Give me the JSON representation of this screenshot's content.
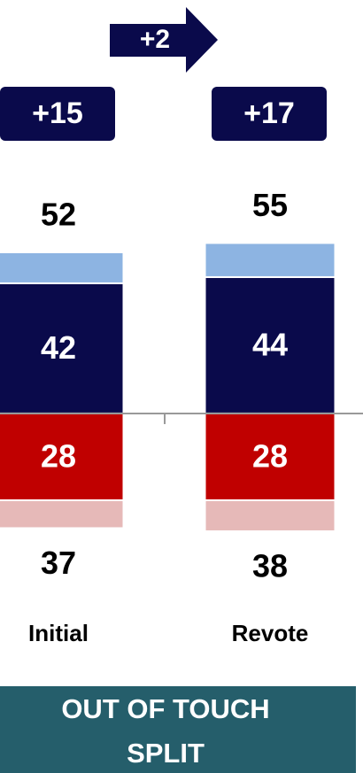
{
  "chart_data": {
    "type": "bar",
    "categories": [
      "Initial",
      "Revote"
    ],
    "series": [
      {
        "color": "#0a0a4b",
        "values": [
          42,
          44
        ]
      },
      {
        "color": "#8db4e2",
        "values": [
          10,
          11
        ]
      },
      {
        "color": "#c00000",
        "values": [
          -28,
          -28
        ],
        "value_labels": [
          "28",
          "28"
        ]
      },
      {
        "color": "#e6b9b8",
        "values": [
          -9,
          -10
        ]
      }
    ],
    "totals": [
      {
        "values": [
          52,
          55
        ]
      },
      {
        "values": [
          -37,
          -38
        ],
        "value_labels": [
          "37",
          "38"
        ]
      }
    ],
    "net": {
      "values": [
        15,
        17
      ],
      "value_labels": [
        "+15",
        "+17"
      ],
      "color": "#0a0a4b"
    },
    "change": {
      "value": 2,
      "label": "+2"
    },
    "banner": [
      "OUT OF TOUCH",
      "SPLIT"
    ],
    "banner_color": "#255e6b",
    "ylim": [
      -116,
      133.4
    ]
  }
}
